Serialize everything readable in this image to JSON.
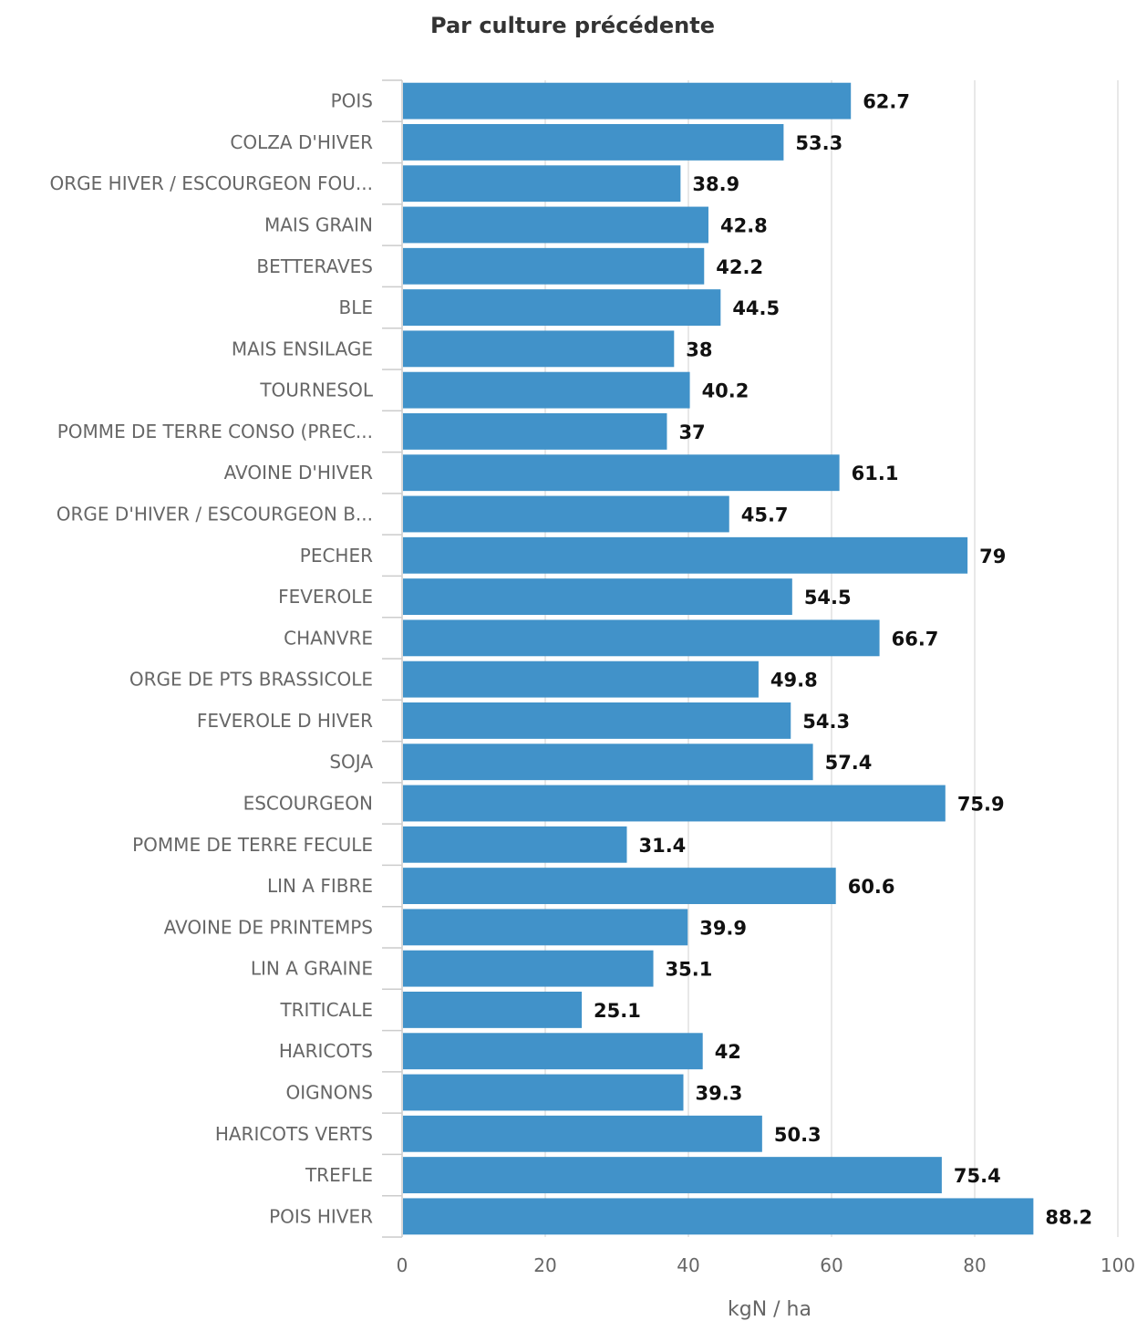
{
  "chart_data": {
    "type": "bar",
    "orientation": "horizontal",
    "title": "Par culture précédente",
    "xlabel": "kgN / ha",
    "ylabel": "",
    "xlim": [
      0,
      100
    ],
    "ticks": [
      "0",
      "20",
      "40",
      "60",
      "80",
      "100"
    ],
    "tick_values": [
      0,
      20,
      40,
      60,
      80,
      100
    ],
    "grid": true,
    "bar_color": "#4192c9",
    "categories": [
      "POIS",
      "COLZA D'HIVER",
      "ORGE HIVER / ESCOURGEON FOU...",
      "MAIS GRAIN",
      "BETTERAVES",
      "BLE",
      "MAIS ENSILAGE",
      "TOURNESOL",
      "POMME DE TERRE CONSO (PREC...",
      "AVOINE D'HIVER",
      "ORGE D'HIVER / ESCOURGEON B...",
      "PECHER",
      "FEVEROLE",
      "CHANVRE",
      "ORGE DE PTS BRASSICOLE",
      "FEVEROLE D HIVER",
      "SOJA",
      "ESCOURGEON",
      "POMME DE TERRE FECULE",
      "LIN A FIBRE",
      "AVOINE DE PRINTEMPS",
      "LIN A GRAINE",
      "TRITICALE",
      "HARICOTS",
      "OIGNONS",
      "HARICOTS VERTS",
      "TREFLE",
      "POIS HIVER"
    ],
    "values": [
      62.7,
      53.3,
      38.9,
      42.8,
      42.2,
      44.5,
      38,
      40.2,
      37,
      61.1,
      45.7,
      79,
      54.5,
      66.7,
      49.8,
      54.3,
      57.4,
      75.9,
      31.4,
      60.6,
      39.9,
      35.1,
      25.1,
      42,
      39.3,
      50.3,
      75.4,
      88.2
    ],
    "data_labels": [
      "62.7",
      "53.3",
      "38.9",
      "42.8",
      "42.2",
      "44.5",
      "38",
      "40.2",
      "37",
      "61.1",
      "45.7",
      "79",
      "54.5",
      "66.7",
      "49.8",
      "54.3",
      "57.4",
      "75.9",
      "31.4",
      "60.6",
      "39.9",
      "35.1",
      "25.1",
      "42",
      "39.3",
      "50.3",
      "75.4",
      "88.2"
    ]
  }
}
